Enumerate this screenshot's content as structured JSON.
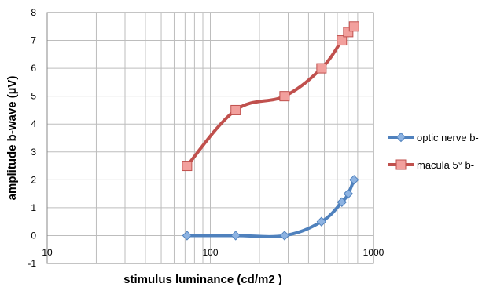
{
  "chart_data": {
    "type": "line",
    "title": "",
    "xlabel": "stimulus luminance (cd/m2 )",
    "ylabel": "amplitude b-wave  (µV)",
    "x_scale": "log",
    "xlim": [
      10,
      1000
    ],
    "ylim": [
      -1,
      8
    ],
    "x_ticks": [
      "10",
      "100",
      "1000"
    ],
    "y_ticks": [
      "-1",
      "0",
      "1",
      "2",
      "3",
      "4",
      "5",
      "6",
      "7",
      "8"
    ],
    "grid": true,
    "legend_position": "right",
    "series": [
      {
        "name": "optic nerve b-",
        "color": "#4f81bd",
        "marker": "diamond",
        "x": [
          72,
          143,
          285,
          480,
          640,
          700,
          760
        ],
        "y": [
          0,
          0,
          0,
          0.5,
          1.2,
          1.5,
          2.0
        ]
      },
      {
        "name": "macula 5° b-",
        "color": "#c0504d",
        "marker": "square",
        "x": [
          72,
          143,
          285,
          480,
          640,
          700,
          760
        ],
        "y": [
          2.5,
          4.5,
          5.0,
          6.0,
          7.0,
          7.3,
          7.5
        ]
      }
    ]
  }
}
